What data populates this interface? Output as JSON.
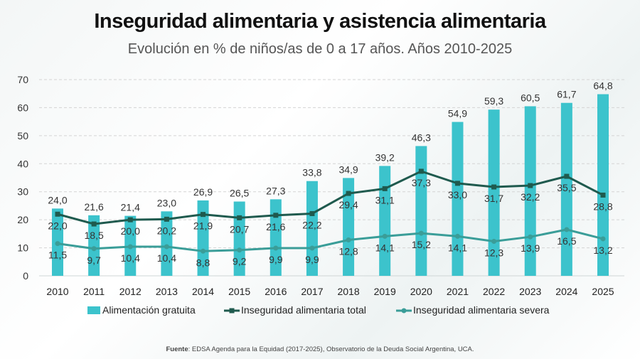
{
  "title": "Inseguridad alimentaria y asistencia alimentaria",
  "subtitle": "Evolución en % de niños/as de 0 a 17 años. Años 2010-2025",
  "source_label": "Fuente",
  "source_text": ": EDSA Agenda para la Equidad (2017-2025), Observatorio de la Deuda Social Argentina, UCA.",
  "chart_data": {
    "type": "bar+line",
    "categories": [
      "2010",
      "2011",
      "2012",
      "2013",
      "2014",
      "2015",
      "2016",
      "2017",
      "2018",
      "2019",
      "2020",
      "2021",
      "2022",
      "2023",
      "2024",
      "2025"
    ],
    "ylim": [
      0,
      70
    ],
    "yticks": [
      0,
      10,
      20,
      30,
      40,
      50,
      60,
      70
    ],
    "grid": true,
    "legend": "bottom",
    "series": [
      {
        "name": "Alimentación gratuita",
        "kind": "bar",
        "color": "#3cc3cc",
        "values": [
          24.0,
          21.6,
          21.4,
          23.0,
          26.9,
          26.5,
          27.3,
          33.8,
          34.9,
          39.2,
          46.3,
          54.9,
          59.3,
          60.5,
          61.7,
          64.8
        ]
      },
      {
        "name": "Inseguridad alimentaria total",
        "kind": "line",
        "color": "#1f5a4e",
        "values": [
          22.0,
          18.5,
          20.0,
          20.2,
          21.9,
          20.7,
          21.6,
          22.2,
          29.4,
          31.1,
          37.3,
          33.0,
          31.7,
          32.2,
          35.5,
          28.8
        ]
      },
      {
        "name": "Inseguridad alimentaria severa",
        "kind": "line",
        "color": "#3a9d98",
        "values": [
          11.5,
          9.7,
          10.4,
          10.4,
          8.8,
          9.2,
          9.9,
          9.9,
          12.8,
          14.1,
          15.2,
          14.1,
          12.3,
          13.9,
          16.5,
          13.2
        ]
      }
    ]
  }
}
